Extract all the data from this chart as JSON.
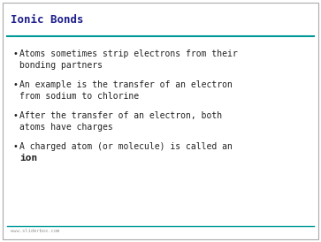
{
  "title": "Ionic Bonds",
  "title_color": "#1F1F8C",
  "title_fontsize": 9,
  "title_font": "monospace",
  "bullet_font": "monospace",
  "bullet_fontsize": 7,
  "bullet_color": "#222222",
  "line_color": "#009999",
  "slide_bg": "#FFFFFF",
  "border_color": "#AAAAAA",
  "bullets_line1": [
    "Atoms sometimes strip electrons from their",
    "An example is the transfer of an electron",
    "After the transfer of an electron, both",
    "A charged atom (or molecule) is called an"
  ],
  "bullets_line2": [
    "bonding partners",
    "from sodium to chlorine",
    "atoms have charges",
    null
  ],
  "last_line_bold": "ion",
  "footer": "www.sliderbox.com",
  "footer_fontsize": 4,
  "footer_color": "#999999"
}
